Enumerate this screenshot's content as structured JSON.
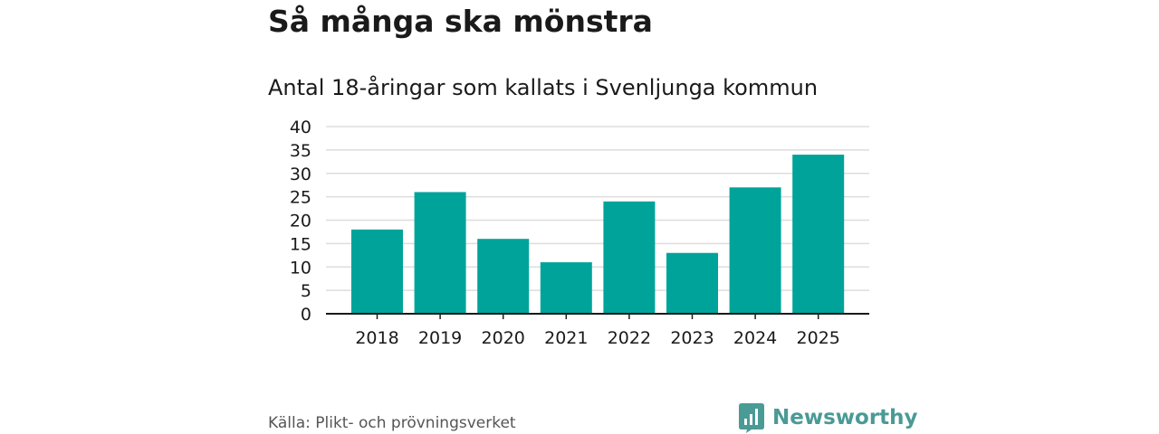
{
  "header": {
    "title": "Så många ska mönstra",
    "subtitle": "Antal 18-åringar som kallats i Svenljunga kommun"
  },
  "footer": {
    "source": "Källa: Plikt- och prövningsverket",
    "brand": "Newsworthy",
    "brand_color": "#4a9a95"
  },
  "chart_data": {
    "type": "bar",
    "title": "Så många ska mönstra",
    "subtitle": "Antal 18-åringar som kallats i Svenljunga kommun",
    "categories": [
      "2018",
      "2019",
      "2020",
      "2021",
      "2022",
      "2023",
      "2024",
      "2025"
    ],
    "values": [
      18,
      26,
      16,
      11,
      24,
      13,
      27,
      34
    ],
    "ylim": [
      0,
      40
    ],
    "yticks": [
      0,
      5,
      10,
      15,
      20,
      25,
      30,
      35,
      40
    ],
    "xlabel": "",
    "ylabel": "",
    "grid": true,
    "bar_color": "#00a39a",
    "gridline_color": "#dddddd",
    "axis_color": "#1a1a1a"
  }
}
